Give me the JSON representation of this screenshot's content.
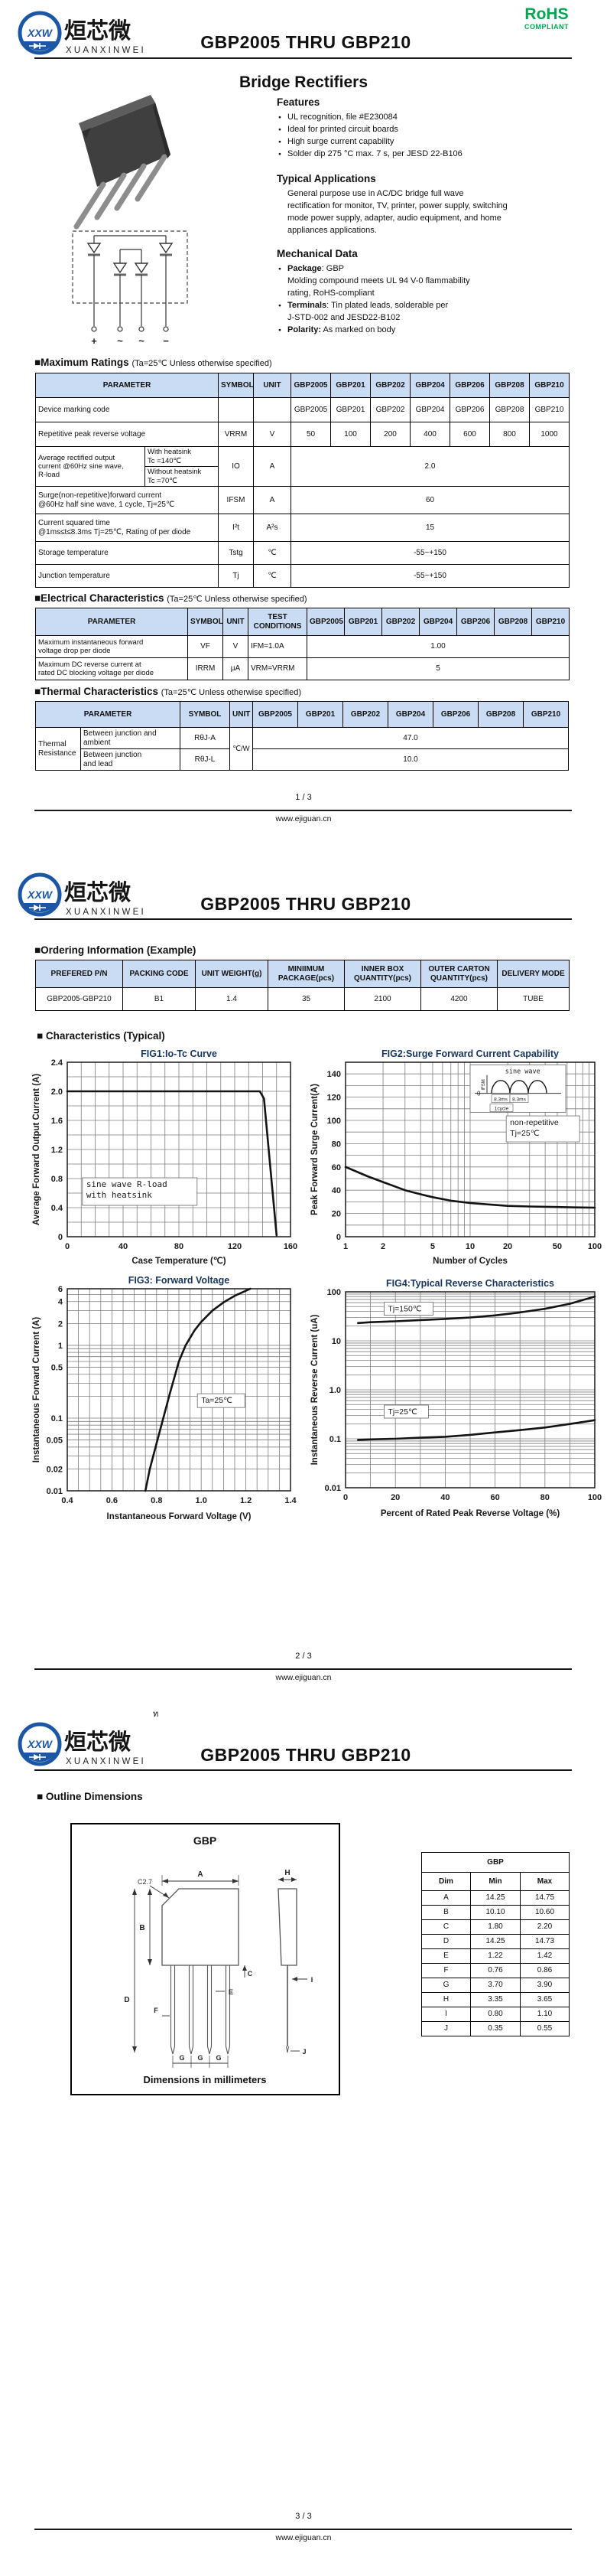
{
  "colors": {
    "accent_blue": "#1b57a5",
    "rohs_green": "#00a550",
    "table_header_bg": "#c9dcf4",
    "chart_title_navy": "#17365d"
  },
  "header": {
    "title": "GBP2005 THRU GBP210",
    "rohs": "RoHS",
    "compliant": "COMPLIANT",
    "brand_cn": "烜芯微",
    "brand_en": "XUANXINWEI",
    "brand_abbr": "XXW"
  },
  "footer": {
    "url": "www.ejiguan.cn",
    "p1": "1 / 3",
    "p2": "2 / 3",
    "p3": "3 / 3"
  },
  "parts": [
    "GBP2005",
    "GBP201",
    "GBP202",
    "GBP204",
    "GBP206",
    "GBP208",
    "GBP210"
  ],
  "page1": {
    "product_heading": "Bridge Rectifiers",
    "features": {
      "title": "Features",
      "items": [
        "UL recognition, file #E230084",
        "Ideal for printed circuit boards",
        "High surge current capability",
        "Solder dip 275 °C max. 7 s, per JESD 22-B106"
      ]
    },
    "applications": {
      "title": "Typical Applications",
      "lines": [
        "General purpose use in AC/DC bridge full wave",
        "rectification for monitor, TV, printer, power supply, switching",
        "mode power supply, adapter, audio equipment, and home",
        "appliances applications."
      ]
    },
    "mechanical": {
      "title": "Mechanical Data",
      "lines": [
        {
          "b": "Package",
          "t": ": GBP",
          "bullet": true
        },
        {
          "t": "Molding compound meets UL 94 V-0 flammability"
        },
        {
          "t": "rating, RoHS-compliant"
        },
        {
          "b": "Terminals",
          "t": ": Tin plated leads, solderable  per",
          "bullet": true
        },
        {
          "t": "J-STD-002 and JESD22-B102"
        },
        {
          "b": "Polarity:",
          "t": " As marked on body",
          "bullet": true
        }
      ]
    },
    "schematic": {
      "t1": "+",
      "t2": "~",
      "t3": "~",
      "t4": "−"
    },
    "max_ratings": {
      "title": "■Maximum Ratings",
      "cond": "(Ta=25℃ Unless otherwise specified)",
      "h_param": "PARAMETER",
      "h_sym": "SYMBOL",
      "h_unit": "UNIT",
      "rows": {
        "marking": {
          "param": "Device marking code"
        },
        "vrrm": {
          "param": "Repetitive peak reverse voltage",
          "sym": "VRRM",
          "unit": "V",
          "vals": [
            "50",
            "100",
            "200",
            "400",
            "600",
            "800",
            "1000"
          ]
        },
        "io": {
          "param1": "Average rectified output",
          "param2": "current @60Hz sine wave,",
          "param3": "R-load",
          "sub1a": "With heatsink",
          "sub1b": "Tc =140℃",
          "sub2a": "Without heatsink",
          "sub2b": "Tc =70℃",
          "sym": "IO",
          "unit": "A",
          "val": "2.0"
        },
        "ifsm": {
          "param1": "Surge(non-repetitive)forward current",
          "param2": "@60Hz half sine wave, 1 cycle, Tj=25℃",
          "sym": "IFSM",
          "unit": "A",
          "val": "60"
        },
        "i2t": {
          "param1": "Current squared time",
          "param2": "@1ms≤t≤8.3ms Tj=25℃, Rating of per diode",
          "sym": "I²t",
          "unit": "A²s",
          "val": "15"
        },
        "tstg": {
          "param": "Storage temperature",
          "sym": "Tstg",
          "unit": "℃",
          "val": "-55~+150"
        },
        "tj": {
          "param": "Junction temperature",
          "sym": "Tj",
          "unit": "℃",
          "val": "-55~+150"
        }
      }
    },
    "electrical": {
      "title": "■Electrical Characteristics",
      "cond": "(Ta=25℃ Unless otherwise specified)",
      "h_param": "PARAMETER",
      "h_sym": "SYMBOL",
      "h_unit": "UNIT",
      "h_cond1": "TEST",
      "h_cond2": "CONDITIONS",
      "rows": {
        "vf": {
          "param1": "Maximum instantaneous forward",
          "param2": "voltage drop per diode",
          "sym": "VF",
          "unit": "V",
          "cond": "IFM=1.0A",
          "val": "1.00"
        },
        "irrm": {
          "param1": "Maximum DC reverse current at",
          "param2": "rated DC blocking voltage per diode",
          "sym": "IRRM",
          "unit": "μA",
          "cond": "VRM=VRRM",
          "val": "5"
        }
      }
    },
    "thermal": {
      "title": "■Thermal Characteristics",
      "cond": "(Ta=25℃ Unless otherwise specified)",
      "h_param": "PARAMETER",
      "h_sym": "SYMBOL",
      "h_unit": "UNIT",
      "group1": "Thermal",
      "group2": "Resistance",
      "unit": "℃/W",
      "rows": {
        "ja": {
          "param1": "Between junction and",
          "param2": "ambient",
          "sym": "RθJ-A",
          "val": "47.0"
        },
        "jl": {
          "param1": "Between junction",
          "param2": "and lead",
          "sym": "RθJ-L",
          "val": "10.0"
        }
      }
    }
  },
  "page2": {
    "ordering": {
      "title": "■Ordering Information (Example)",
      "headers": [
        "PREFERED P/N",
        "PACKING CODE",
        "UNIT WEIGHT(g)",
        "MINIIMUM PACKAGE(pcs)",
        "INNER BOX QUANTITY(pcs)",
        "OUTER CARTON QUANTITY(pcs)",
        "DELIVERY MODE"
      ],
      "row": [
        "GBP2005-GBP210",
        "B1",
        "1.4",
        "35",
        "2100",
        "4200",
        "TUBE"
      ]
    },
    "characteristics_title": "■ Characteristics (Typical)"
  },
  "page3": {
    "stray": "ท",
    "outline_title": "■ Outline Dimensions",
    "outline": {
      "pkg": "GBP",
      "caption": "Dimensions in millimeters",
      "labels": {
        "a": "A",
        "b": "B",
        "c": "C",
        "c27": "C2.7",
        "d": "D",
        "e": "E",
        "f": "F",
        "g1": "G",
        "g2": "G",
        "g3": "G",
        "h": "H",
        "i": "I",
        "j": "J"
      }
    },
    "dim_table": {
      "title": "GBP",
      "headers": [
        "Dim",
        "Min",
        "Max"
      ],
      "rows": [
        [
          "A",
          "14.25",
          "14.75"
        ],
        [
          "B",
          "10.10",
          "10.60"
        ],
        [
          "C",
          "1.80",
          "2.20"
        ],
        [
          "D",
          "14.25",
          "14.73"
        ],
        [
          "E",
          "1.22",
          "1.42"
        ],
        [
          "F",
          "0.76",
          "0.86"
        ],
        [
          "G",
          "3.70",
          "3.90"
        ],
        [
          "H",
          "3.35",
          "3.65"
        ],
        [
          "I",
          "0.80",
          "1.10"
        ],
        [
          "J",
          "0.35",
          "0.55"
        ]
      ]
    }
  },
  "chart_data": [
    {
      "type": "line",
      "name": "fig1",
      "title": "FIG1:Io-Tc Curve",
      "xlabel": "Case Temperature (℃)",
      "ylabel": "Average Forward Output Current (A)",
      "xlog": false,
      "ylog": false,
      "xlim": [
        0,
        160
      ],
      "ylim": [
        0,
        2.4
      ],
      "margin": [
        50,
        22,
        12,
        42
      ],
      "xticks": [
        [
          0,
          "0"
        ],
        [
          40,
          "40"
        ],
        [
          80,
          "80"
        ],
        [
          120,
          "120"
        ],
        [
          160,
          "160"
        ]
      ],
      "yticks": [
        [
          0,
          "0"
        ],
        [
          0.4,
          "0.4"
        ],
        [
          0.8,
          "0.8"
        ],
        [
          1.2,
          "1.2"
        ],
        [
          1.6,
          "1.6"
        ],
        [
          2.0,
          "2.0"
        ],
        [
          2.4,
          "2.4"
        ]
      ],
      "xgrid": [
        10,
        20,
        30,
        40,
        50,
        60,
        70,
        80,
        90,
        100,
        110,
        120,
        130,
        140,
        150
      ],
      "ygrid": [
        0.2,
        0.4,
        0.6,
        0.8,
        1.0,
        1.2,
        1.4,
        1.6,
        1.8,
        2.0,
        2.2
      ],
      "series": [
        {
          "name": "Io",
          "points": [
            [
              0,
              2.0
            ],
            [
              138,
              2.0
            ],
            [
              141,
              1.9
            ],
            [
              150,
              0.02
            ]
          ]
        }
      ],
      "annotations": [
        {
          "fx": 0.085,
          "fy": 0.715,
          "lines": [
            "sine wave R-load",
            "with heatsink"
          ],
          "box": true,
          "w": 150,
          "h": 36,
          "mono": true,
          "size": 11
        }
      ]
    },
    {
      "type": "line",
      "name": "fig2",
      "title": "FIG2:Surge Forward Current Capability",
      "xlabel": "Number of Cycles",
      "ylabel": "Peak Forward Surge Current(A)",
      "xlog": true,
      "ylog": false,
      "xlim": [
        1,
        100
      ],
      "ylim": [
        0,
        150
      ],
      "margin": [
        50,
        22,
        12,
        42
      ],
      "xticks": [
        [
          1,
          "1"
        ],
        [
          2,
          "2"
        ],
        [
          5,
          "5"
        ],
        [
          10,
          "10"
        ],
        [
          20,
          "20"
        ],
        [
          50,
          "50"
        ],
        [
          100,
          "100"
        ]
      ],
      "yticks": [
        [
          0,
          "0"
        ],
        [
          20,
          "20"
        ],
        [
          40,
          "40"
        ],
        [
          60,
          "60"
        ],
        [
          80,
          "80"
        ],
        [
          100,
          "100"
        ],
        [
          120,
          "120"
        ],
        [
          140,
          "140"
        ]
      ],
      "xgrid": [
        2,
        3,
        4,
        5,
        6,
        7,
        8,
        9,
        10,
        20,
        30,
        40,
        50,
        60,
        70,
        80,
        90
      ],
      "ygrid": [
        10,
        20,
        30,
        40,
        50,
        60,
        70,
        80,
        90,
        100,
        110,
        120,
        130,
        140
      ],
      "series": [
        {
          "name": "IFSM",
          "points": [
            [
              1,
              60
            ],
            [
              1.5,
              52
            ],
            [
              2,
              47
            ],
            [
              3,
              40
            ],
            [
              4,
              36.5
            ],
            [
              5,
              34
            ],
            [
              7,
              31
            ],
            [
              10,
              29
            ],
            [
              15,
              27.5
            ],
            [
              20,
              26.5
            ],
            [
              30,
              26
            ],
            [
              50,
              25.5
            ],
            [
              70,
              25.2
            ],
            [
              100,
              25
            ]
          ]
        }
      ],
      "annotations": [
        {
          "fx": 0.66,
          "fy": 0.36,
          "lines": [
            "non-repetitive",
            "Tj=25℃"
          ],
          "box": true,
          "w": 96,
          "h": 34,
          "size": 10.5
        }
      ],
      "inset": {
        "fx": 0.5,
        "fy": 0.015,
        "w": 125,
        "h": 62,
        "labels": [
          "sine wave",
          "IFSM",
          "8.3ms",
          "8.3ms",
          "1cycle",
          "0"
        ]
      }
    },
    {
      "type": "line",
      "name": "fig3",
      "title": "FIG3: Forward Voltage",
      "xlabel": "Instantaneous Forward Voltage (V)",
      "ylabel": "Instantaneous Forward Current (A)",
      "xlog": false,
      "ylog": true,
      "xlim": [
        0.4,
        1.4
      ],
      "ylim": [
        0.01,
        6
      ],
      "margin": [
        50,
        22,
        12,
        44
      ],
      "xticks": [
        [
          0.4,
          "0.4"
        ],
        [
          0.6,
          "0.6"
        ],
        [
          0.8,
          "0.8"
        ],
        [
          1.0,
          "1.0"
        ],
        [
          1.2,
          "1.2"
        ],
        [
          1.4,
          "1.4"
        ]
      ],
      "yticks": [
        [
          0.01,
          "0.01"
        ],
        [
          0.02,
          "0.02"
        ],
        [
          0.05,
          "0.05"
        ],
        [
          0.1,
          "0.1"
        ],
        [
          0.5,
          "0.5"
        ],
        [
          1,
          "1"
        ],
        [
          2,
          "2"
        ],
        [
          4,
          "4"
        ],
        [
          6,
          "6"
        ]
      ],
      "xgrid": [
        0.45,
        0.5,
        0.55,
        0.6,
        0.65,
        0.7,
        0.75,
        0.8,
        0.85,
        0.9,
        0.95,
        1.0,
        1.05,
        1.1,
        1.15,
        1.2,
        1.25,
        1.3,
        1.35
      ],
      "ygrid": [
        0.02,
        0.03,
        0.04,
        0.05,
        0.06,
        0.07,
        0.08,
        0.09,
        0.1,
        0.2,
        0.3,
        0.4,
        0.5,
        0.6,
        0.7,
        0.8,
        0.9,
        1,
        2,
        3,
        4,
        5
      ],
      "series": [
        {
          "name": "VF",
          "points": [
            [
              0.75,
              0.01
            ],
            [
              0.77,
              0.02
            ],
            [
              0.8,
              0.045
            ],
            [
              0.83,
              0.1
            ],
            [
              0.86,
              0.22
            ],
            [
              0.9,
              0.6
            ],
            [
              0.93,
              1.0
            ],
            [
              0.97,
              1.6
            ],
            [
              1.0,
              2.1
            ],
            [
              1.05,
              3.0
            ],
            [
              1.1,
              3.9
            ],
            [
              1.15,
              4.8
            ],
            [
              1.22,
              6.0
            ]
          ]
        }
      ],
      "annotations": [
        {
          "fx": 0.6,
          "fy": 0.565,
          "lines": [
            "Ta=25℃"
          ],
          "box": true,
          "w": 62,
          "h": 18,
          "size": 10.5
        }
      ]
    },
    {
      "type": "line",
      "name": "fig4",
      "title": "FIG4:Typical Reverse Characteristics",
      "xlabel": "Percent of Rated Peak Reverse Voltage  (%)",
      "ylabel": "Instantaneous Reverse Current (uA)",
      "xlog": false,
      "ylog": true,
      "xlim": [
        0,
        100
      ],
      "ylim": [
        0.01,
        100
      ],
      "margin": [
        50,
        22,
        12,
        44
      ],
      "xticks": [
        [
          0,
          "0"
        ],
        [
          20,
          "20"
        ],
        [
          40,
          "40"
        ],
        [
          60,
          "60"
        ],
        [
          80,
          "80"
        ],
        [
          100,
          "100"
        ]
      ],
      "yticks": [
        [
          0.01,
          "0.01"
        ],
        [
          0.1,
          "0.1"
        ],
        [
          1,
          "1.0"
        ],
        [
          10,
          "10"
        ],
        [
          100,
          "100"
        ]
      ],
      "xgrid": [
        10,
        20,
        30,
        40,
        50,
        60,
        70,
        80,
        90
      ],
      "ygrid": [
        0.02,
        0.03,
        0.04,
        0.05,
        0.06,
        0.07,
        0.08,
        0.09,
        0.1,
        0.2,
        0.3,
        0.4,
        0.5,
        0.6,
        0.7,
        0.8,
        0.9,
        1,
        2,
        3,
        4,
        5,
        6,
        7,
        8,
        9,
        10,
        20,
        30,
        40,
        50,
        60,
        70,
        80,
        90
      ],
      "series": [
        {
          "name": "Tj=150℃",
          "points": [
            [
              5,
              23
            ],
            [
              10,
              24
            ],
            [
              20,
              25
            ],
            [
              30,
              26.5
            ],
            [
              40,
              28
            ],
            [
              50,
              30
            ],
            [
              60,
              33
            ],
            [
              70,
              38
            ],
            [
              80,
              45
            ],
            [
              90,
              57
            ],
            [
              100,
              80
            ]
          ]
        },
        {
          "name": "Tj=25℃",
          "points": [
            [
              5,
              0.095
            ],
            [
              10,
              0.097
            ],
            [
              20,
              0.1
            ],
            [
              30,
              0.105
            ],
            [
              40,
              0.11
            ],
            [
              50,
              0.12
            ],
            [
              60,
              0.135
            ],
            [
              70,
              0.15
            ],
            [
              80,
              0.17
            ],
            [
              90,
              0.2
            ],
            [
              100,
              0.24
            ]
          ]
        }
      ],
      "annotations": [
        {
          "fx": 0.17,
          "fy": 0.1,
          "lines": [
            "Tj=150℃"
          ],
          "box": true,
          "w": 64,
          "h": 17,
          "size": 10.5
        },
        {
          "fx": 0.17,
          "fy": 0.625,
          "lines": [
            "Tj=25℃"
          ],
          "box": true,
          "w": 58,
          "h": 17,
          "size": 10.5
        }
      ]
    }
  ]
}
